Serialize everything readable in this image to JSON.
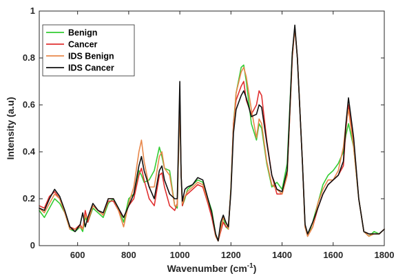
{
  "chart_data": {
    "type": "line",
    "title": "",
    "xlabel_main": "Wavenumber (cm",
    "xlabel_sup": "-1",
    "xlabel_close": ")",
    "ylabel": "Intensity (a.u)",
    "xlim": [
      450,
      1800
    ],
    "ylim": [
      0,
      1
    ],
    "xticks": [
      600,
      800,
      1000,
      1200,
      1400,
      1600,
      1800
    ],
    "yticks": [
      0,
      0.2,
      0.4,
      0.6,
      0.8,
      1
    ],
    "xtick_labels": [
      "600",
      "800",
      "1000",
      "1200",
      "1400",
      "1600",
      "1800"
    ],
    "ytick_labels": [
      "0",
      "0.2",
      "0.4",
      "0.6",
      "0.8",
      "1"
    ],
    "grid": false,
    "legend_position": "top-left",
    "series": [
      {
        "name": "Benign",
        "color": "#33cc33",
        "x": [
          450,
          470,
          490,
          510,
          530,
          550,
          570,
          590,
          610,
          620,
          630,
          640,
          660,
          680,
          700,
          720,
          740,
          760,
          780,
          800,
          820,
          840,
          850,
          860,
          880,
          900,
          920,
          930,
          940,
          960,
          980,
          990,
          1000,
          1005,
          1010,
          1020,
          1030,
          1050,
          1070,
          1090,
          1110,
          1125,
          1140,
          1150,
          1160,
          1170,
          1180,
          1190,
          1200,
          1210,
          1220,
          1240,
          1250,
          1260,
          1280,
          1300,
          1310,
          1320,
          1340,
          1360,
          1380,
          1400,
          1420,
          1440,
          1450,
          1460,
          1480,
          1490,
          1500,
          1520,
          1540,
          1560,
          1580,
          1600,
          1620,
          1640,
          1650,
          1660,
          1680,
          1700,
          1720,
          1740,
          1760,
          1780,
          1800
        ],
        "y": [
          0.15,
          0.12,
          0.16,
          0.2,
          0.18,
          0.14,
          0.07,
          0.06,
          0.08,
          0.06,
          0.12,
          0.1,
          0.16,
          0.14,
          0.12,
          0.18,
          0.2,
          0.16,
          0.1,
          0.2,
          0.22,
          0.32,
          0.3,
          0.27,
          0.28,
          0.32,
          0.42,
          0.38,
          0.33,
          0.32,
          0.17,
          0.16,
          0.62,
          0.3,
          0.17,
          0.2,
          0.24,
          0.26,
          0.28,
          0.27,
          0.2,
          0.15,
          0.05,
          0.02,
          0.08,
          0.12,
          0.08,
          0.07,
          0.25,
          0.52,
          0.65,
          0.76,
          0.77,
          0.7,
          0.52,
          0.45,
          0.52,
          0.5,
          0.35,
          0.25,
          0.27,
          0.24,
          0.35,
          0.82,
          0.93,
          0.8,
          0.35,
          0.08,
          0.04,
          0.1,
          0.18,
          0.26,
          0.3,
          0.32,
          0.35,
          0.4,
          0.47,
          0.52,
          0.42,
          0.2,
          0.06,
          0.04,
          0.06,
          0.05,
          0.07
        ]
      },
      {
        "name": "Cancer",
        "color": "#e03030",
        "x": [
          450,
          470,
          490,
          510,
          530,
          550,
          570,
          590,
          610,
          620,
          630,
          640,
          660,
          680,
          700,
          720,
          740,
          760,
          780,
          800,
          820,
          840,
          850,
          860,
          880,
          900,
          920,
          930,
          940,
          960,
          980,
          990,
          1000,
          1005,
          1010,
          1020,
          1030,
          1050,
          1070,
          1090,
          1110,
          1125,
          1140,
          1150,
          1160,
          1170,
          1180,
          1190,
          1200,
          1210,
          1220,
          1240,
          1250,
          1260,
          1280,
          1300,
          1310,
          1320,
          1340,
          1360,
          1380,
          1400,
          1420,
          1440,
          1450,
          1460,
          1480,
          1490,
          1500,
          1520,
          1540,
          1560,
          1580,
          1600,
          1620,
          1640,
          1650,
          1660,
          1680,
          1700,
          1720,
          1740,
          1760,
          1780,
          1800
        ],
        "y": [
          0.17,
          0.16,
          0.21,
          0.23,
          0.2,
          0.14,
          0.08,
          0.07,
          0.09,
          0.07,
          0.15,
          0.1,
          0.17,
          0.15,
          0.13,
          0.19,
          0.19,
          0.15,
          0.12,
          0.17,
          0.2,
          0.3,
          0.33,
          0.28,
          0.2,
          0.17,
          0.3,
          0.31,
          0.25,
          0.17,
          0.15,
          0.18,
          0.63,
          0.3,
          0.17,
          0.21,
          0.22,
          0.24,
          0.26,
          0.25,
          0.18,
          0.12,
          0.04,
          0.02,
          0.06,
          0.1,
          0.08,
          0.08,
          0.24,
          0.52,
          0.62,
          0.68,
          0.7,
          0.62,
          0.56,
          0.6,
          0.66,
          0.64,
          0.45,
          0.3,
          0.22,
          0.22,
          0.3,
          0.8,
          0.93,
          0.8,
          0.35,
          0.08,
          0.04,
          0.08,
          0.16,
          0.22,
          0.26,
          0.28,
          0.3,
          0.34,
          0.5,
          0.6,
          0.45,
          0.2,
          0.06,
          0.05,
          0.05,
          0.05,
          0.07
        ]
      },
      {
        "name": "IDS Benign",
        "color": "#e8874a",
        "x": [
          450,
          470,
          490,
          510,
          530,
          550,
          570,
          590,
          610,
          620,
          630,
          640,
          660,
          680,
          700,
          720,
          740,
          760,
          780,
          800,
          820,
          840,
          850,
          860,
          880,
          900,
          920,
          930,
          940,
          960,
          980,
          990,
          1000,
          1005,
          1010,
          1020,
          1030,
          1050,
          1070,
          1090,
          1110,
          1125,
          1140,
          1150,
          1160,
          1170,
          1180,
          1190,
          1200,
          1210,
          1220,
          1240,
          1250,
          1260,
          1280,
          1300,
          1310,
          1320,
          1340,
          1360,
          1380,
          1400,
          1420,
          1440,
          1450,
          1460,
          1480,
          1490,
          1500,
          1520,
          1540,
          1560,
          1580,
          1600,
          1620,
          1640,
          1650,
          1660,
          1680,
          1700,
          1720,
          1740,
          1760,
          1780,
          1800
        ],
        "y": [
          0.16,
          0.14,
          0.18,
          0.22,
          0.2,
          0.14,
          0.07,
          0.07,
          0.08,
          0.07,
          0.13,
          0.11,
          0.17,
          0.15,
          0.13,
          0.2,
          0.2,
          0.15,
          0.08,
          0.18,
          0.25,
          0.4,
          0.45,
          0.36,
          0.25,
          0.25,
          0.38,
          0.4,
          0.33,
          0.3,
          0.17,
          0.17,
          0.62,
          0.3,
          0.18,
          0.21,
          0.23,
          0.25,
          0.27,
          0.26,
          0.19,
          0.14,
          0.04,
          0.02,
          0.07,
          0.12,
          0.1,
          0.07,
          0.24,
          0.5,
          0.65,
          0.74,
          0.76,
          0.72,
          0.58,
          0.46,
          0.54,
          0.52,
          0.36,
          0.26,
          0.24,
          0.22,
          0.3,
          0.8,
          0.93,
          0.8,
          0.35,
          0.08,
          0.04,
          0.08,
          0.18,
          0.24,
          0.28,
          0.28,
          0.32,
          0.42,
          0.52,
          0.58,
          0.42,
          0.2,
          0.06,
          0.04,
          0.05,
          0.05,
          0.07
        ]
      },
      {
        "name": "IDS Cancer",
        "color": "#111111",
        "x": [
          450,
          470,
          490,
          510,
          530,
          550,
          570,
          590,
          610,
          620,
          630,
          640,
          660,
          680,
          700,
          720,
          740,
          760,
          780,
          800,
          820,
          840,
          850,
          860,
          880,
          900,
          920,
          930,
          940,
          960,
          980,
          990,
          1000,
          1005,
          1010,
          1020,
          1030,
          1050,
          1070,
          1090,
          1110,
          1125,
          1140,
          1150,
          1160,
          1170,
          1180,
          1190,
          1200,
          1210,
          1220,
          1240,
          1250,
          1260,
          1280,
          1300,
          1310,
          1320,
          1340,
          1360,
          1380,
          1400,
          1420,
          1440,
          1450,
          1460,
          1480,
          1490,
          1500,
          1520,
          1540,
          1560,
          1580,
          1600,
          1620,
          1640,
          1650,
          1660,
          1680,
          1700,
          1720,
          1740,
          1760,
          1780,
          1800
        ],
        "y": [
          0.16,
          0.15,
          0.2,
          0.24,
          0.21,
          0.15,
          0.08,
          0.06,
          0.09,
          0.14,
          0.08,
          0.12,
          0.18,
          0.15,
          0.14,
          0.2,
          0.2,
          0.16,
          0.12,
          0.17,
          0.22,
          0.34,
          0.38,
          0.32,
          0.25,
          0.2,
          0.32,
          0.34,
          0.28,
          0.22,
          0.2,
          0.2,
          0.7,
          0.3,
          0.19,
          0.24,
          0.25,
          0.26,
          0.29,
          0.28,
          0.2,
          0.14,
          0.05,
          0.02,
          0.1,
          0.13,
          0.1,
          0.08,
          0.23,
          0.48,
          0.58,
          0.64,
          0.66,
          0.63,
          0.55,
          0.56,
          0.6,
          0.59,
          0.44,
          0.3,
          0.24,
          0.23,
          0.32,
          0.82,
          0.94,
          0.8,
          0.35,
          0.09,
          0.05,
          0.1,
          0.16,
          0.22,
          0.26,
          0.28,
          0.3,
          0.36,
          0.52,
          0.63,
          0.46,
          0.2,
          0.06,
          0.05,
          0.05,
          0.05,
          0.07
        ]
      }
    ]
  }
}
